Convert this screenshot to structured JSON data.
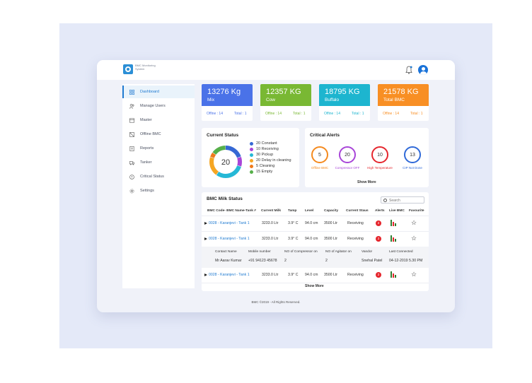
{
  "app": {
    "logo_text": "BMC Monitoring System",
    "footer": "BMC ©2019 - All Rights Reserved."
  },
  "sidebar": {
    "items": [
      {
        "label": "Dashboard",
        "icon": "grid-icon"
      },
      {
        "label": "Manage Users",
        "icon": "users-icon"
      },
      {
        "label": "Master",
        "icon": "master-icon"
      },
      {
        "label": "Offline BMC",
        "icon": "offline-icon"
      },
      {
        "label": "Reports",
        "icon": "report-icon"
      },
      {
        "label": "Tanker",
        "icon": "truck-icon"
      },
      {
        "label": "Critical Status",
        "icon": "alert-icon"
      },
      {
        "label": "Settings",
        "icon": "gear-icon"
      }
    ]
  },
  "stats": [
    {
      "value": "13276 Kg",
      "label": "Mix",
      "offline": "Offine : 14",
      "total": "Total : 1",
      "color": "#4a72e8",
      "foot_color": "#4a72e8"
    },
    {
      "value": "12357 KG",
      "label": "Cow",
      "offline": "Offine : 14",
      "total": "Total : 1",
      "color": "#79b833",
      "foot_color": "#79b833"
    },
    {
      "value": "18795 KG",
      "label": "Buffalo",
      "offline": "Offine : 14",
      "total": "Total : 1",
      "color": "#1db5cf",
      "foot_color": "#1db5cf"
    },
    {
      "value": "21578 KG",
      "label": "Total BMC",
      "offline": "Offine : 14",
      "total": "Total : 1",
      "color": "#f88f24",
      "foot_color": "#f88f24"
    }
  ],
  "current_status": {
    "title": "Current Status",
    "center": "20",
    "legend": [
      {
        "label": "20 Constant",
        "color": "#3568d4",
        "count": 20
      },
      {
        "label": "10 Receiving",
        "color": "#a845d8",
        "count": 10
      },
      {
        "label": "30 Pickup",
        "color": "#25b8d6",
        "count": 30
      },
      {
        "label": "20 Delay in cleaning",
        "color": "#f5a623",
        "count": 20
      },
      {
        "label": "5 Cleaning",
        "color": "#f07a1a",
        "count": 5
      },
      {
        "label": "15 Empty",
        "color": "#56b04a",
        "count": 15
      }
    ]
  },
  "critical_alerts": {
    "title": "Critical Alerts",
    "items": [
      {
        "value": "5",
        "label": "Offline BMC",
        "color": "#f58a1e"
      },
      {
        "value": "20",
        "label": "Compressor OFF",
        "color": "#a845d8"
      },
      {
        "value": "10",
        "label": "High Temperature",
        "color": "#e5262d"
      },
      {
        "value": "13",
        "label": "CIP Not Done",
        "color": "#2f69d8"
      }
    ],
    "show_more": "Show More"
  },
  "milk_status": {
    "title": "BMC Milk Status",
    "search_placeholder": "Search",
    "headers": [
      "BMC Code- BMC Name-Tank #",
      "Current Milk",
      "Tamp",
      "Level",
      "Capacity",
      "Current Staus",
      "Alerts",
      "Live BMC",
      "Favourite"
    ],
    "rows": [
      {
        "code": "0028 - Karanjevi - Tank 1",
        "milk": "3233.0 Ltr",
        "temp": "3.9° C",
        "level": "94.0 cm",
        "capacity": "3500 Ltr",
        "status": "Receiving",
        "alerts": "2"
      },
      {
        "code": "0028 - Karanjevi - Tank 1",
        "milk": "3233.0 Ltr",
        "temp": "3.9° C",
        "level": "94.0 cm",
        "capacity": "3500 Ltr",
        "status": "Receiving",
        "alerts": "2"
      },
      {
        "code": "0028 - Karanjevi - Tank 1",
        "milk": "3233.0 Ltr",
        "temp": "3.9° C",
        "level": "94.0 cm",
        "capacity": "3500 Ltr",
        "status": "Receiving",
        "alerts": "2"
      }
    ],
    "detail": {
      "headers": [
        "Contact Name",
        "Mobile number",
        "NO of Compressor on",
        "NO of Agitator on",
        "Vandor",
        "Last Connected"
      ],
      "values": [
        "Mr Aarav Kumar",
        "+91 94123 45678",
        "2",
        "2",
        "Snehal Patel",
        "04-12-2019 5.30 PM"
      ]
    },
    "show_more": "Show More"
  }
}
